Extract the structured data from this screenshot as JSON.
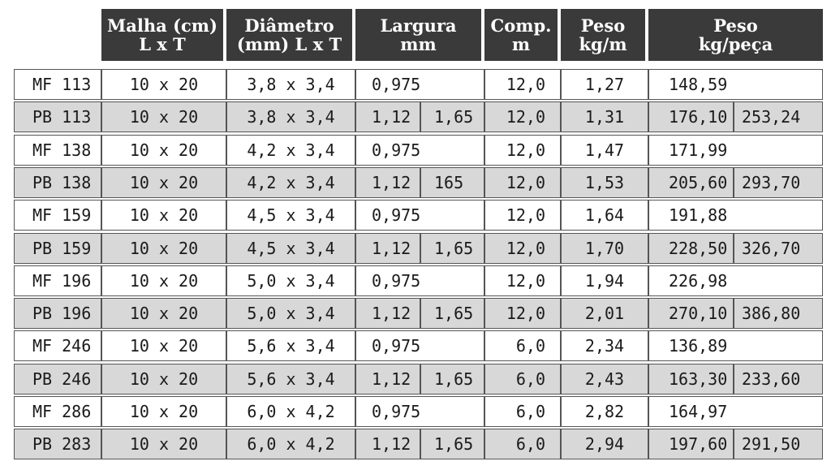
{
  "table": {
    "headers": {
      "malha": [
        "Malha (cm)",
        "L x T"
      ],
      "diametro": [
        "Diâmetro",
        "(mm) L x T"
      ],
      "largura": [
        "Largura",
        "mm"
      ],
      "comp": [
        "Comp.",
        "m"
      ],
      "peso": [
        "Peso",
        "kg/m"
      ],
      "peso_peca": [
        "Peso",
        "kg/peça"
      ]
    },
    "rows": [
      {
        "code": "MF 113",
        "malha": "10 x 20",
        "diam": "3,8 x 3,4",
        "larg1": "0,975",
        "larg2": "",
        "comp": "12,0",
        "peso": "1,27",
        "pp1": "148,59",
        "pp2": ""
      },
      {
        "code": "PB 113",
        "malha": "10 x 20",
        "diam": "3,8 x 3,4",
        "larg1": "1,12",
        "larg2": "1,65",
        "comp": "12,0",
        "peso": "1,31",
        "pp1": "176,10",
        "pp2": "253,24"
      },
      {
        "code": "MF 138",
        "malha": "10 x 20",
        "diam": "4,2 x 3,4",
        "larg1": "0,975",
        "larg2": "",
        "comp": "12,0",
        "peso": "1,47",
        "pp1": "171,99",
        "pp2": ""
      },
      {
        "code": "PB 138",
        "malha": "10 x 20",
        "diam": "4,2 x 3,4",
        "larg1": "1,12",
        "larg2": "165",
        "comp": "12,0",
        "peso": "1,53",
        "pp1": "205,60",
        "pp2": "293,70"
      },
      {
        "code": "MF 159",
        "malha": "10 x 20",
        "diam": "4,5 x 3,4",
        "larg1": "0,975",
        "larg2": "",
        "comp": "12,0",
        "peso": "1,64",
        "pp1": "191,88",
        "pp2": ""
      },
      {
        "code": "PB 159",
        "malha": "10 x 20",
        "diam": "4,5 x 3,4",
        "larg1": "1,12",
        "larg2": "1,65",
        "comp": "12,0",
        "peso": "1,70",
        "pp1": "228,50",
        "pp2": "326,70"
      },
      {
        "code": "MF 196",
        "malha": "10 x 20",
        "diam": "5,0 x 3,4",
        "larg1": "0,975",
        "larg2": "",
        "comp": "12,0",
        "peso": "1,94",
        "pp1": "226,98",
        "pp2": ""
      },
      {
        "code": "PB 196",
        "malha": "10 x 20",
        "diam": "5,0 x 3,4",
        "larg1": "1,12",
        "larg2": "1,65",
        "comp": "12,0",
        "peso": "2,01",
        "pp1": "270,10",
        "pp2": "386,80"
      },
      {
        "code": "MF 246",
        "malha": "10 x 20",
        "diam": "5,6 x 3,4",
        "larg1": "0,975",
        "larg2": "",
        "comp": "6,0",
        "peso": "2,34",
        "pp1": "136,89",
        "pp2": ""
      },
      {
        "code": "PB 246",
        "malha": "10 x 20",
        "diam": "5,6 x 3,4",
        "larg1": "1,12",
        "larg2": "1,65",
        "comp": "6,0",
        "peso": "2,43",
        "pp1": "163,30",
        "pp2": "233,60"
      },
      {
        "code": "MF 286",
        "malha": "10 x 20",
        "diam": "6,0 x 4,2",
        "larg1": "0,975",
        "larg2": "",
        "comp": "6,0",
        "peso": "2,82",
        "pp1": "164,97",
        "pp2": ""
      },
      {
        "code": "PB 283",
        "malha": "10 x 20",
        "diam": "6,0 x 4,2",
        "larg1": "1,12",
        "larg2": "1,65",
        "comp": "6,0",
        "peso": "2,94",
        "pp1": "197,60",
        "pp2": "291,50"
      }
    ]
  }
}
